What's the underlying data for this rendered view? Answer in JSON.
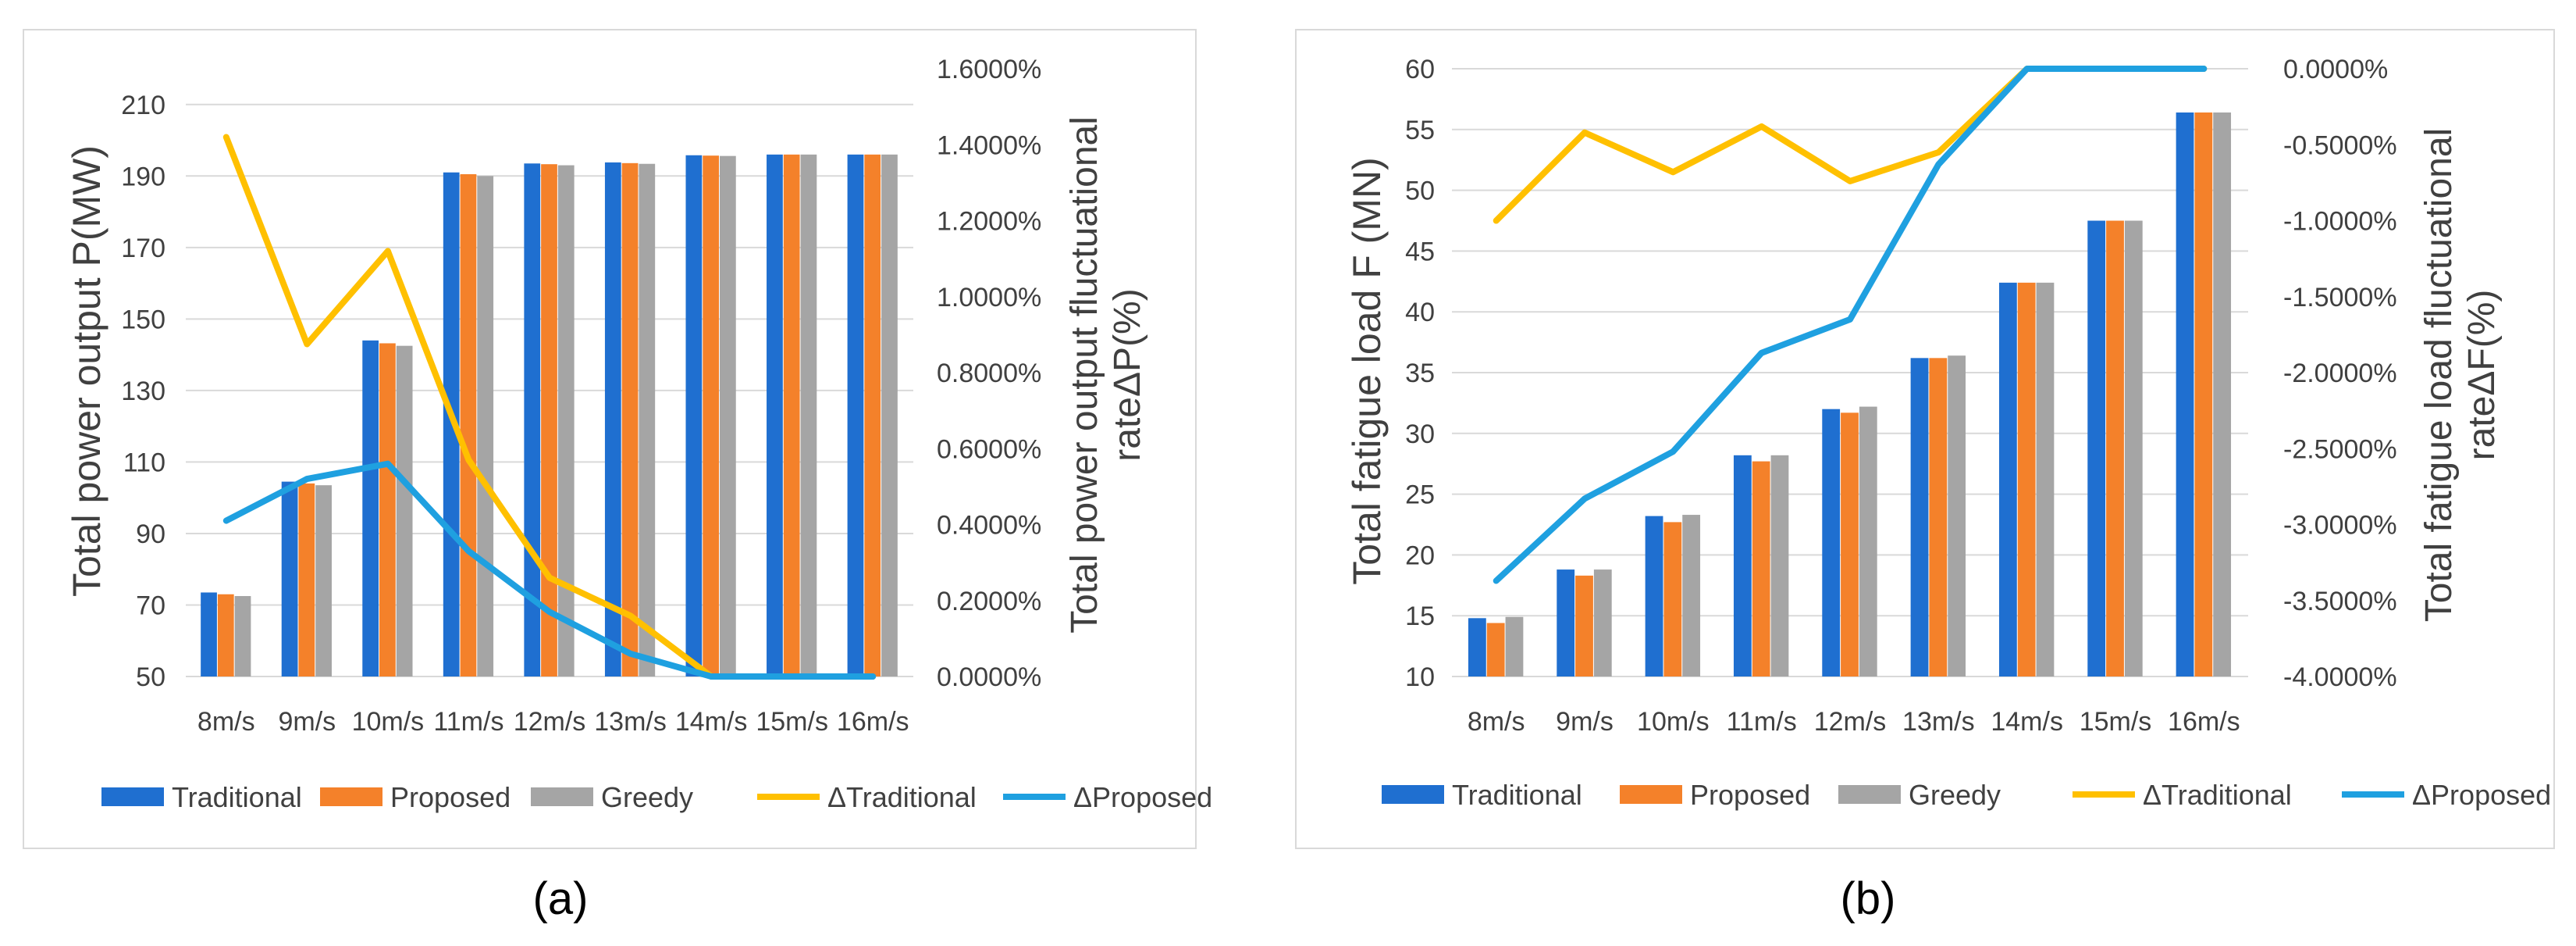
{
  "figure": {
    "panel_a_caption": "(a)",
    "panel_b_caption": "(b)"
  },
  "colors": {
    "traditional": "#1F6FD0",
    "proposed": "#F4812A",
    "greedy": "#A5A5A5",
    "delta_traditional": "#FFC000",
    "delta_proposed": "#1FA0E0",
    "grid": "#d9d9d9",
    "text": "#404040"
  },
  "chart_data": [
    {
      "type": "bar",
      "panel": "a",
      "categories": [
        "8m/s",
        "9m/s",
        "10m/s",
        "11m/s",
        "12m/s",
        "13m/s",
        "14m/s",
        "15m/s",
        "16m/s"
      ],
      "series": [
        {
          "name": "Traditional",
          "kind": "bar",
          "axis": "left",
          "values": [
            73.5,
            104.5,
            144,
            191,
            193.5,
            193.8,
            195.8,
            196,
            196
          ]
        },
        {
          "name": "Proposed",
          "kind": "bar",
          "axis": "left",
          "values": [
            73,
            104,
            143.2,
            190.5,
            193.3,
            193.6,
            195.7,
            196,
            196
          ]
        },
        {
          "name": "Greedy",
          "kind": "bar",
          "axis": "left",
          "values": [
            72.5,
            103.5,
            142.5,
            190,
            193,
            193.4,
            195.6,
            196,
            196
          ]
        },
        {
          "name": "ΔTraditional",
          "kind": "line",
          "axis": "right",
          "values": [
            1.42,
            0.875,
            1.12,
            0.57,
            0.26,
            0.16,
            0.0,
            0.0,
            0.0
          ]
        },
        {
          "name": "ΔProposed",
          "kind": "line",
          "axis": "right",
          "values": [
            0.41,
            0.52,
            0.56,
            0.33,
            0.17,
            0.06,
            0.0,
            0.0,
            0.0
          ]
        }
      ],
      "ylabel": "Total power output P(MW)",
      "y2label_line1": "Total power output fluctuational",
      "y2label_line2": "rateΔP(%)",
      "ylim": [
        50,
        220
      ],
      "yticks": [
        "210",
        "190",
        "170",
        "150",
        "130",
        "110",
        "90",
        "70",
        "50"
      ],
      "y2lim": [
        0,
        1.6
      ],
      "y2ticks": [
        "1.6000%",
        "1.4000%",
        "1.2000%",
        "1.0000%",
        "0.8000%",
        "0.6000%",
        "0.4000%",
        "0.2000%",
        "0.0000%"
      ],
      "legend": [
        "Traditional",
        "Proposed",
        "Greedy",
        "ΔTraditional",
        "ΔProposed"
      ]
    },
    {
      "type": "bar",
      "panel": "b",
      "categories": [
        "8m/s",
        "9m/s",
        "10m/s",
        "11m/s",
        "12m/s",
        "13m/s",
        "14m/s",
        "15m/s",
        "16m/s"
      ],
      "series": [
        {
          "name": "Traditional",
          "kind": "bar",
          "axis": "left",
          "values": [
            14.8,
            18.8,
            23.2,
            28.2,
            32,
            36.2,
            42.4,
            47.5,
            56.4
          ]
        },
        {
          "name": "Proposed",
          "kind": "bar",
          "axis": "left",
          "values": [
            14.4,
            18.3,
            22.7,
            27.7,
            31.7,
            36.2,
            42.4,
            47.5,
            56.4
          ]
        },
        {
          "name": "Greedy",
          "kind": "bar",
          "axis": "left",
          "values": [
            14.9,
            18.8,
            23.3,
            28.2,
            32.2,
            36.4,
            42.4,
            47.5,
            56.4
          ]
        },
        {
          "name": "ΔTraditional",
          "kind": "line",
          "axis": "right",
          "values": [
            -1.0,
            -0.42,
            -0.68,
            -0.38,
            -0.74,
            -0.55,
            0.0,
            0.0,
            0.0
          ]
        },
        {
          "name": "ΔProposed",
          "kind": "line",
          "axis": "right",
          "values": [
            -3.37,
            -2.83,
            -2.52,
            -1.87,
            -1.65,
            -0.63,
            0.0,
            0.0,
            0.0
          ]
        }
      ],
      "ylabel": "Total fatigue load  F (MN)",
      "y2label_line1": "Total fatigue load fluctuational",
      "y2label_line2": "rateΔF(%)",
      "ylim": [
        10,
        60
      ],
      "yticks": [
        "60",
        "55",
        "50",
        "45",
        "40",
        "35",
        "30",
        "25",
        "20",
        "15",
        "10"
      ],
      "y2lim": [
        -4,
        0
      ],
      "y2ticks": [
        "0.0000%",
        "-0.5000%",
        "-1.0000%",
        "-1.5000%",
        "-2.0000%",
        "-2.5000%",
        "-3.0000%",
        "-3.5000%",
        "-4.0000%"
      ],
      "legend": [
        "Traditional",
        "Proposed",
        "Greedy",
        "ΔTraditional",
        "ΔProposed"
      ]
    }
  ]
}
